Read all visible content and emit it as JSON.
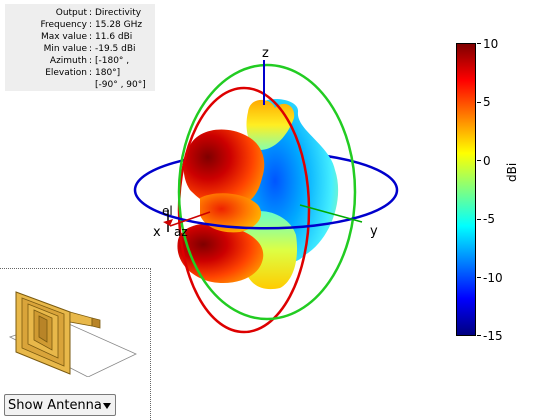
{
  "info": {
    "rows": [
      {
        "label": "Output",
        "value": "Directivity"
      },
      {
        "label": "Frequency",
        "value": "15.28 GHz"
      },
      {
        "label": "Max value",
        "value": "11.6 dBi"
      },
      {
        "label": "Min value",
        "value": "-19.5 dBi"
      },
      {
        "label": "Azimuth",
        "value": "[-180° ,"
      },
      {
        "label": "Elevation",
        "value": "180°]"
      }
    ],
    "extra_line": "[-90° , 90°]"
  },
  "axes": {
    "x": "x",
    "y": "y",
    "z": "z",
    "az": "az",
    "el": "el"
  },
  "colorbar": {
    "unit": "dBi",
    "min": -15,
    "max": 10,
    "ticks": [
      "10",
      "5",
      "0",
      "-5",
      "-10",
      "-15"
    ]
  },
  "colors": {
    "azimuth_ring": "#0000cc",
    "elevation_ring": "#dd0000",
    "vertical_ring": "#22cc22",
    "z_axis": "#0000cc",
    "thumbnail": "#e8b84a"
  },
  "view_select": {
    "selected": "Show Antenna"
  }
}
